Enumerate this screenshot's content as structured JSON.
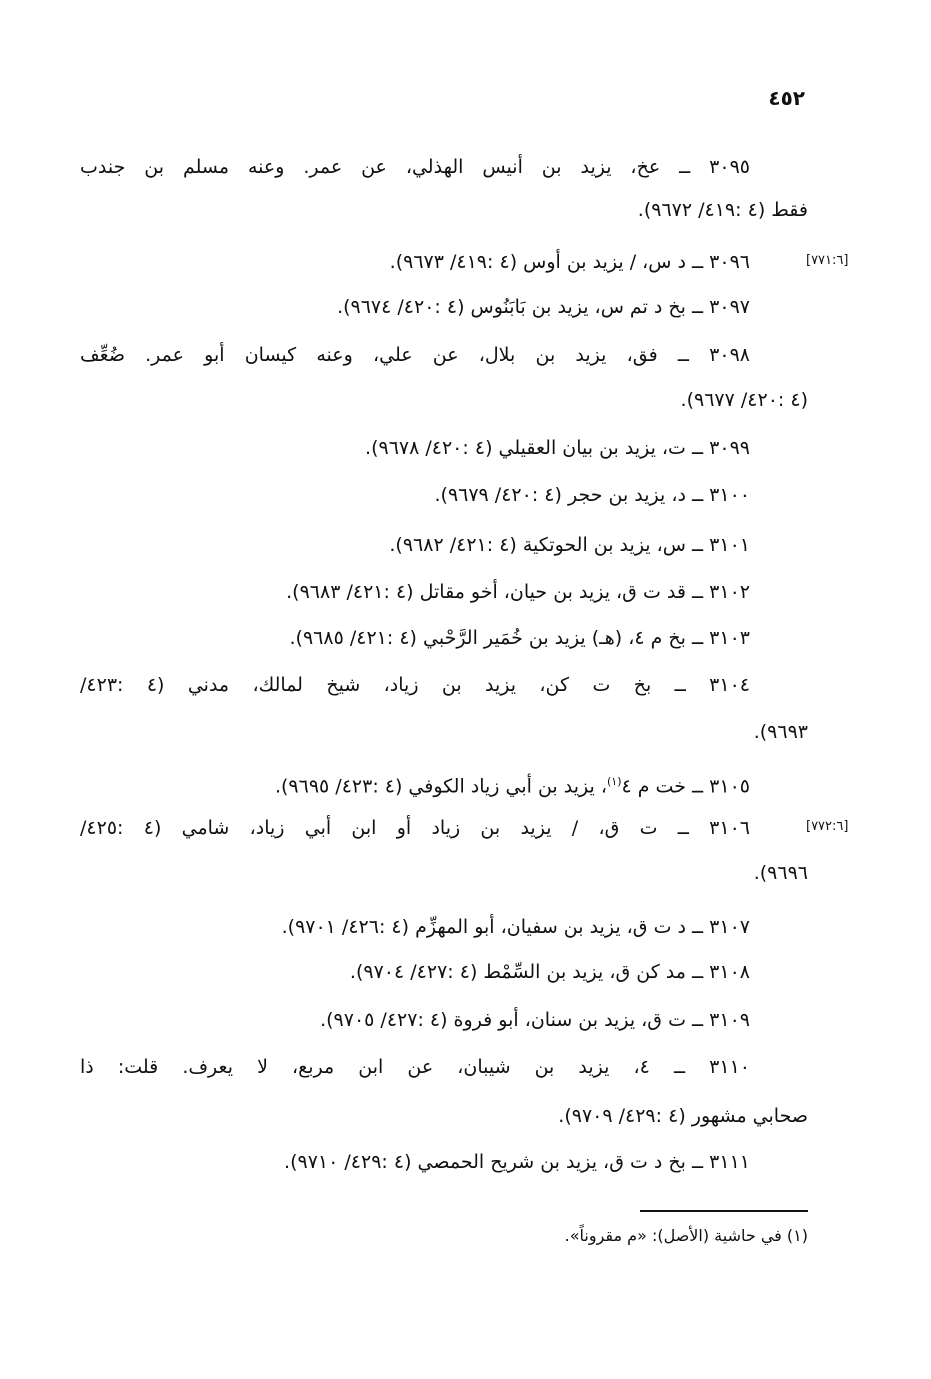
{
  "page_number": "٤٥٢",
  "entries": [
    {
      "lines": [
        "٣٠٩٥ ــ عخ، يزيد بن أنيس الهذلي، عن عمر. وعنه مسلم بن جندب",
        "فقط (٤ :٤١٩/ ٩٦٧٢)."
      ]
    },
    {
      "lines": [
        "٣٠٩٦ ــ د س، / يزيد بن أوس (٤ :٤١٩/ ٩٦٧٣)."
      ],
      "margin": "[٧٧١:٦]"
    },
    {
      "lines": [
        "٣٠٩٧ ــ بخ د تم س، يزيد بن بَابَنُوس (٤ :٤٢٠/ ٩٦٧٤)."
      ]
    },
    {
      "lines": [
        "٣٠٩٨ ــ فق، يزيد بن بلال، عن علي، وعنه كيسان أبو عمر. ضُعِّف",
        "(٤ :٤٢٠/ ٩٦٧٧)."
      ]
    },
    {
      "lines": [
        "٣٠٩٩ ــ ت، يزيد بن بيان العقيلي (٤ :٤٢٠/ ٩٦٧٨)."
      ]
    },
    {
      "lines": [
        "٣١٠٠ ــ د، يزيد بن حجر (٤ :٤٢٠/ ٩٦٧٩)."
      ]
    },
    {
      "lines": [
        "٣١٠١ ــ س، يزيد بن الحوتكية (٤ :٤٢١/ ٩٦٨٢)."
      ]
    },
    {
      "lines": [
        "٣١٠٢ ــ قد ت ق، يزيد بن حيان، أخو مقاتل (٤ :٤٢١/ ٩٦٨٣)."
      ]
    },
    {
      "lines": [
        "٣١٠٣ ــ بخ م ٤، (هـ) يزيد بن خُمَير الرَّحْبي (٤ :٤٢١/ ٩٦٨٥)."
      ]
    },
    {
      "lines": [
        "٣١٠٤ ــ بخ ت كن، يزيد بن زياد، شيخ لمالك، مدني (٤ :٤٢٣/",
        "٩٦٩٣)."
      ]
    },
    {
      "lines": [
        "٣١٠٥ ــ خت م ٤",
        "، يزيد بن أبي زياد الكوفي (٤ :٤٢٣/ ٩٦٩٥)."
      ],
      "footnote_ref": "(١)",
      "inline": true
    },
    {
      "lines": [
        "٣١٠٦ ــ ت ق، / يزيد بن زياد أو ابن أبي زياد، شامي (٤ :٤٢٥/",
        "٩٦٩٦)."
      ],
      "margin": "[٧٧٢:٦]"
    },
    {
      "lines": [
        "٣١٠٧ ــ د ت ق، يزيد بن سفيان، أبو المهزِّم (٤ :٤٢٦/ ٩٧٠١)."
      ]
    },
    {
      "lines": [
        "٣١٠٨ ــ مد كن ق، يزيد بن السِّمْط (٤ :٤٢٧/ ٩٧٠٤)."
      ]
    },
    {
      "lines": [
        "٣١٠٩ ــ ت ق، يزيد بن سنان، أبو فروة (٤ :٤٢٧/ ٩٧٠٥)."
      ]
    },
    {
      "lines": [
        "٣١١٠ ــ ٤، يزيد بن شيبان، عن ابن مربع، لا يعرف. قلت: ذا",
        "صحابي مشهور (٤ :٤٢٩/ ٩٧٠٩)."
      ]
    },
    {
      "lines": [
        "٣١١١ ــ بخ د ت ق، يزيد بن شريح الحمصي (٤ :٤٢٩/ ٩٧١٠)."
      ]
    }
  ],
  "footnote": "(١)  في حاشية (الأصل): «م مقروناً»."
}
